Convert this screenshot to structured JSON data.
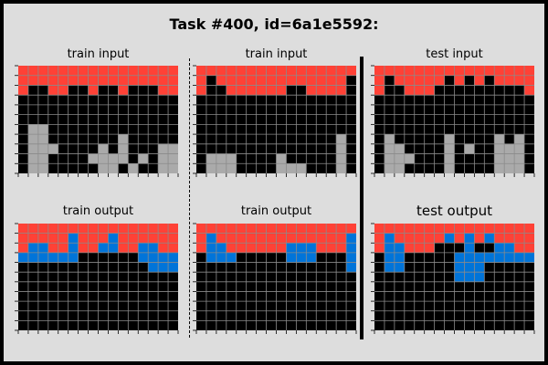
{
  "title": "Task #400, id=6a1e5592:",
  "colors": {
    "0": "#000000",
    "1": "#0074d9",
    "2": "#ff4136",
    "5": "#aaaaaa"
  },
  "panels": [
    {
      "label": "train input",
      "grid": [
        "2222222222222222",
        "2222222222222222",
        "2002200200200022",
        "0000000000000000",
        "0000000000000000",
        "0000000000000000",
        "0550000000000000",
        "0550000000500000",
        "0555000050500055",
        "0550000555505055",
        "0550000055050055"
      ]
    },
    {
      "label": "train input",
      "grid": [
        "2222222222222222",
        "2022222222222220",
        "2002222220022220",
        "0000000000000000",
        "0000000000000000",
        "0000000000000000",
        "0000000000000000",
        "0000000000000050",
        "0000000000000050",
        "0555000050000050",
        "0555000055500050"
      ]
    },
    {
      "label": "test input",
      "grid": [
        "2222222222222222",
        "2022222020202222",
        "2002220000000002",
        "0000000000000000",
        "0000000000000000",
        "0000000000000000",
        "0000000000000000",
        "0500000500005050",
        "0550000505005550",
        "0555000500005550",
        "0550000500005550"
      ]
    },
    {
      "label": "train output",
      "grid": [
        "2222222222222222",
        "2222212221222222",
        "2112212211221122",
        "1111110000001111",
        "0000000000000111",
        "0000000000000000",
        "0000000000000000",
        "0000000000000000",
        "0000000000000000",
        "0000000000000000",
        "0000000000000000"
      ]
    },
    {
      "label": "train output",
      "grid": [
        "2222222222222222",
        "2122222222222221",
        "2112222221112221",
        "0111000001110001",
        "0000000000000001",
        "0000000000000000",
        "0000000000000000",
        "0000000000000000",
        "0000000000000000",
        "0000000000000000",
        "0000000000000000"
      ]
    },
    {
      "label": "test output",
      "grid": [
        "2222222222222222",
        "2122222121212222",
        "2112220001001122",
        "0110000011111111",
        "0110000011100000",
        "0000000011100000",
        "0000000000000000",
        "0000000000000000",
        "0000000000000000",
        "0000000000000000",
        "0000000000000000"
      ]
    }
  ]
}
